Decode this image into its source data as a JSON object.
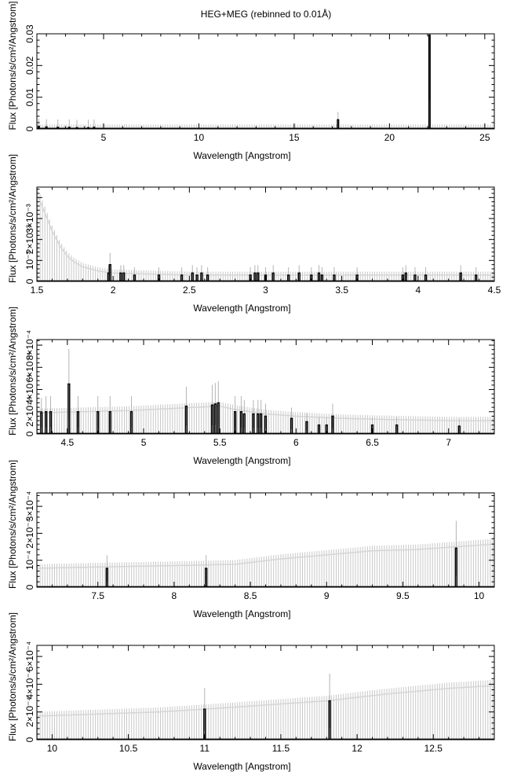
{
  "title": "HEG+MEG (rebinned to 0.01Å)",
  "chart_data": [
    {
      "type": "histogram",
      "xlabel": "Wavelength [Angstrom]",
      "ylabel": "Flux [Photons/s/cm²/Angstrom]",
      "xlim": [
        1.5,
        25.5
      ],
      "ylim": [
        0,
        0.03
      ],
      "xticks": [
        5,
        10,
        15,
        20,
        25
      ],
      "xtick_labels": [
        "5",
        "10",
        "15",
        "20",
        "25"
      ],
      "yticks": [
        0,
        0.01,
        0.02,
        0.03
      ],
      "ytick_labels": [
        "0",
        "0.01",
        "0.02",
        "0.03"
      ],
      "continuum": [
        [
          1.5,
          0.0004
        ],
        [
          25.5,
          0.0004
        ]
      ],
      "lines": [
        [
          1.6,
          0.0008
        ],
        [
          2.0,
          0.0006
        ],
        [
          2.6,
          0.0005
        ],
        [
          3.2,
          0.0005
        ],
        [
          3.6,
          0.0004
        ],
        [
          4.2,
          0.0004
        ],
        [
          4.5,
          0.0005
        ],
        [
          17.3,
          0.0029
        ],
        [
          22.1,
          0.0296
        ]
      ]
    },
    {
      "type": "histogram",
      "xlabel": "Wavelength [Angstrom]",
      "ylabel": "Flux [Photons/s/cm²/Angstrom]",
      "xlim": [
        1.5,
        4.5
      ],
      "ylim": [
        0,
        0.0045
      ],
      "xticks": [
        1.5,
        2,
        2.5,
        3,
        3.5,
        4,
        4.5
      ],
      "xtick_labels": [
        "1.5",
        "2",
        "2.5",
        "3",
        "3.5",
        "4",
        "4.5"
      ],
      "yticks": [
        0,
        0.001,
        0.002,
        0.003
      ],
      "ytick_labels": [
        "0",
        "10⁻³",
        "2×10⁻³",
        "3×10⁻³"
      ],
      "continuum": [
        [
          1.5,
          0.0042
        ],
        [
          1.55,
          0.0033
        ],
        [
          1.6,
          0.0024
        ],
        [
          1.65,
          0.0017
        ],
        [
          1.7,
          0.0012
        ],
        [
          1.75,
          0.0009
        ],
        [
          1.8,
          0.0007
        ],
        [
          1.9,
          0.0005
        ],
        [
          2.0,
          0.0004
        ],
        [
          2.5,
          0.0003
        ],
        [
          3.0,
          0.0003
        ],
        [
          3.5,
          0.0003
        ],
        [
          4.0,
          0.0003
        ],
        [
          4.5,
          0.0003
        ]
      ],
      "lines": [
        [
          1.97,
          0.0004
        ],
        [
          1.98,
          0.0008
        ],
        [
          2.05,
          0.0004
        ],
        [
          2.07,
          0.0004
        ],
        [
          2.14,
          0.0003
        ],
        [
          2.3,
          0.0003
        ],
        [
          2.45,
          0.0003
        ],
        [
          2.52,
          0.0004
        ],
        [
          2.55,
          0.0003
        ],
        [
          2.58,
          0.0004
        ],
        [
          2.62,
          0.0003
        ],
        [
          2.9,
          0.0003
        ],
        [
          2.93,
          0.0004
        ],
        [
          2.95,
          0.0004
        ],
        [
          3.0,
          0.0003
        ],
        [
          3.05,
          0.0004
        ],
        [
          3.15,
          0.0003
        ],
        [
          3.22,
          0.0004
        ],
        [
          3.3,
          0.0003
        ],
        [
          3.35,
          0.0004
        ],
        [
          3.37,
          0.0003
        ],
        [
          3.45,
          0.0003
        ],
        [
          3.6,
          0.0003
        ],
        [
          3.9,
          0.0003
        ],
        [
          3.92,
          0.0004
        ],
        [
          3.98,
          0.0003
        ],
        [
          4.05,
          0.0003
        ],
        [
          4.28,
          0.0004
        ],
        [
          4.38,
          0.0003
        ]
      ]
    },
    {
      "type": "histogram",
      "xlabel": "Wavelength [Angstrom]",
      "ylabel": "Flux [Photons/s/cm²/Angstrom]",
      "xlim": [
        4.3,
        7.3
      ],
      "ylim": [
        0,
        0.00085
      ],
      "xticks": [
        4.5,
        5,
        5.5,
        6,
        6.5,
        7
      ],
      "xtick_labels": [
        "4.5",
        "5",
        "5.5",
        "6",
        "6.5",
        "7"
      ],
      "yticks": [
        0,
        0.0002,
        0.0004,
        0.0006,
        0.0008
      ],
      "ytick_labels": [
        "0",
        "2×10⁻⁴",
        "4×10⁻⁴",
        "6×10⁻⁴",
        "8×10⁻⁴"
      ],
      "continuum": [
        [
          4.3,
          0.00019
        ],
        [
          4.6,
          0.0002
        ],
        [
          4.9,
          0.00021
        ],
        [
          5.2,
          0.00023
        ],
        [
          5.5,
          0.00025
        ],
        [
          5.6,
          0.00022
        ],
        [
          5.8,
          0.00018
        ],
        [
          6.0,
          0.00016
        ],
        [
          6.3,
          0.00014
        ],
        [
          6.6,
          0.00013
        ],
        [
          7.0,
          0.00012
        ],
        [
          7.3,
          0.00012
        ]
      ],
      "lines": [
        [
          4.33,
          0.00019
        ],
        [
          4.36,
          0.0002
        ],
        [
          4.39,
          0.0002
        ],
        [
          4.51,
          0.00045
        ],
        [
          4.57,
          0.0002
        ],
        [
          4.7,
          0.0002
        ],
        [
          4.78,
          0.0002
        ],
        [
          4.92,
          0.0002
        ],
        [
          5.28,
          0.00025
        ],
        [
          5.45,
          0.00026
        ],
        [
          5.47,
          0.00027
        ],
        [
          5.49,
          0.00028
        ],
        [
          5.6,
          0.0002
        ],
        [
          5.64,
          0.0002
        ],
        [
          5.66,
          0.00018
        ],
        [
          5.72,
          0.00018
        ],
        [
          5.75,
          0.00018
        ],
        [
          5.77,
          0.00018
        ],
        [
          5.8,
          0.00016
        ],
        [
          5.97,
          0.00014
        ],
        [
          6.07,
          0.00011
        ],
        [
          6.15,
          8e-05
        ],
        [
          6.2,
          8e-05
        ],
        [
          6.24,
          0.00016
        ],
        [
          6.5,
          8e-05
        ],
        [
          6.66,
          8e-05
        ],
        [
          7.07,
          7e-05
        ]
      ]
    },
    {
      "type": "histogram",
      "xlabel": "Wavelength [Angstrom]",
      "ylabel": "Flux [Photons/s/cm²/Angstrom]",
      "xlim": [
        7.1,
        10.1
      ],
      "ylim": [
        0,
        0.00035
      ],
      "xticks": [
        7.5,
        8,
        8.5,
        9,
        9.5,
        10
      ],
      "xtick_labels": [
        "7.5",
        "8",
        "8.5",
        "9",
        "9.5",
        "10"
      ],
      "yticks": [
        0,
        0.0001,
        0.0002,
        0.0003
      ],
      "ytick_labels": [
        "0",
        "10⁻⁴",
        "2×10⁻⁴",
        "3×10⁻⁴"
      ],
      "continuum": [
        [
          7.1,
          7e-05
        ],
        [
          7.5,
          7.5e-05
        ],
        [
          8.0,
          8e-05
        ],
        [
          8.4,
          8.5e-05
        ],
        [
          8.7,
          0.000105
        ],
        [
          9.0,
          0.00012
        ],
        [
          9.3,
          0.000135
        ],
        [
          9.6,
          0.00014
        ],
        [
          9.85,
          0.00015
        ],
        [
          10.1,
          0.00016
        ]
      ],
      "lines": [
        [
          7.56,
          7e-05
        ],
        [
          8.21,
          7e-05
        ],
        [
          9.85,
          0.000145
        ]
      ]
    },
    {
      "type": "histogram",
      "xlabel": "Wavelength [Angstrom]",
      "ylabel": "Flux [Photons/s/cm²/Angstrom]",
      "xlim": [
        9.9,
        12.9
      ],
      "ylim": [
        0,
        0.00068
      ],
      "xticks": [
        10,
        10.5,
        11,
        11.5,
        12,
        12.5
      ],
      "xtick_labels": [
        "10",
        "10.5",
        "11",
        "11.5",
        "12",
        "12.5"
      ],
      "yticks": [
        0,
        0.0002,
        0.0004,
        0.0006
      ],
      "ytick_labels": [
        "0",
        "2×10⁻⁴",
        "4×10⁻⁴",
        "6×10⁻⁴"
      ],
      "continuum": [
        [
          9.9,
          0.00017
        ],
        [
          10.3,
          0.000185
        ],
        [
          10.7,
          0.0002
        ],
        [
          11.0,
          0.00022
        ],
        [
          11.4,
          0.00025
        ],
        [
          11.8,
          0.00028
        ],
        [
          12.2,
          0.00033
        ],
        [
          12.6,
          0.00037
        ],
        [
          12.9,
          0.00039
        ]
      ],
      "lines": [
        [
          11.0,
          0.00022
        ],
        [
          11.82,
          0.00028
        ]
      ]
    }
  ]
}
